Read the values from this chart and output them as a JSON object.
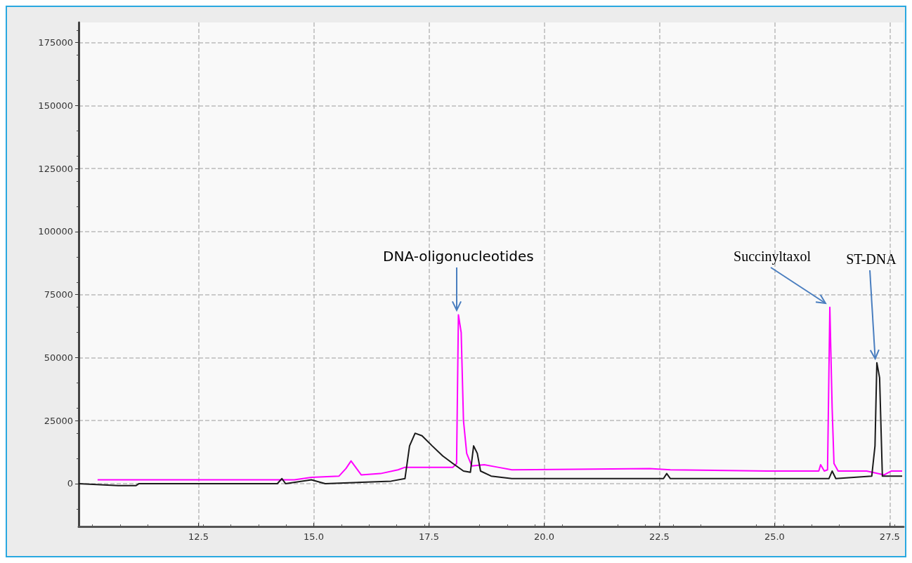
{
  "chart_data": {
    "type": "line",
    "xlim": [
      9.9,
      27.8
    ],
    "ylim": [
      -17000,
      183000
    ],
    "xticks": [
      12.5,
      {
        "value": 15,
        "label": "15.0"
      },
      17.5,
      {
        "value": 20,
        "label": "20.0"
      },
      22.5,
      {
        "value": 25,
        "label": "25.0"
      },
      27.5
    ],
    "yticks": [
      0,
      25000,
      50000,
      75000,
      100000,
      125000,
      150000,
      175000
    ],
    "grid": true,
    "marker": "none",
    "line_style": "solid",
    "series": [
      {
        "color": "#ff00ff",
        "x": [
          10.31,
          12.86,
          14.58,
          14.95,
          15.55,
          15.7,
          15.81,
          15.93,
          16.03,
          16.45,
          16.83,
          16.98,
          18.02,
          18.1,
          18.14,
          18.2,
          18.25,
          18.32,
          18.43,
          18.7,
          19.0,
          19.3,
          22.29,
          22.74,
          24.84,
          25.96,
          26.0,
          26.08,
          26.15,
          26.2,
          26.25,
          26.29,
          26.38,
          27.0,
          27.38,
          27.53,
          27.77
        ],
        "values": [
          1500,
          1500,
          1500,
          2500,
          3000,
          6000,
          9000,
          6000,
          3500,
          4000,
          5500,
          6500,
          6500,
          8000,
          67000,
          60000,
          25000,
          12000,
          7000,
          7500,
          6500,
          5500,
          6000,
          5500,
          5000,
          5000,
          7500,
          5000,
          5500,
          70000,
          30000,
          8000,
          5000,
          5000,
          3500,
          5000,
          5000
        ]
      },
      {
        "color": "#1a1a1a",
        "x": [
          9.9,
          10.76,
          11.14,
          11.21,
          14.21,
          14.31,
          14.39,
          14.95,
          15.25,
          16.68,
          16.98,
          17.08,
          17.2,
          17.35,
          17.57,
          17.8,
          18.02,
          18.25,
          18.4,
          18.47,
          18.55,
          18.62,
          18.85,
          19.3,
          22.59,
          22.66,
          22.74,
          26.18,
          26.25,
          26.33,
          27.11,
          27.18,
          27.22,
          27.28,
          27.34,
          27.77
        ],
        "values": [
          0,
          -800,
          -800,
          0,
          0,
          2000,
          0,
          1500,
          0,
          1000,
          2000,
          15000,
          20000,
          19000,
          15000,
          11000,
          8000,
          5000,
          4500,
          15000,
          12000,
          5000,
          3000,
          2000,
          2000,
          4000,
          2000,
          2000,
          5000,
          2000,
          3000,
          15000,
          48000,
          42000,
          3000,
          3000
        ]
      }
    ],
    "annotations": [
      {
        "text": "DNA-oligonucleotides",
        "x": 18.14,
        "y": 67000
      },
      {
        "text": "Succinyltaxol",
        "x": 26.2,
        "y": 70000
      },
      {
        "text": "ST-DNA",
        "x": 27.22,
        "y": 48000
      }
    ]
  }
}
